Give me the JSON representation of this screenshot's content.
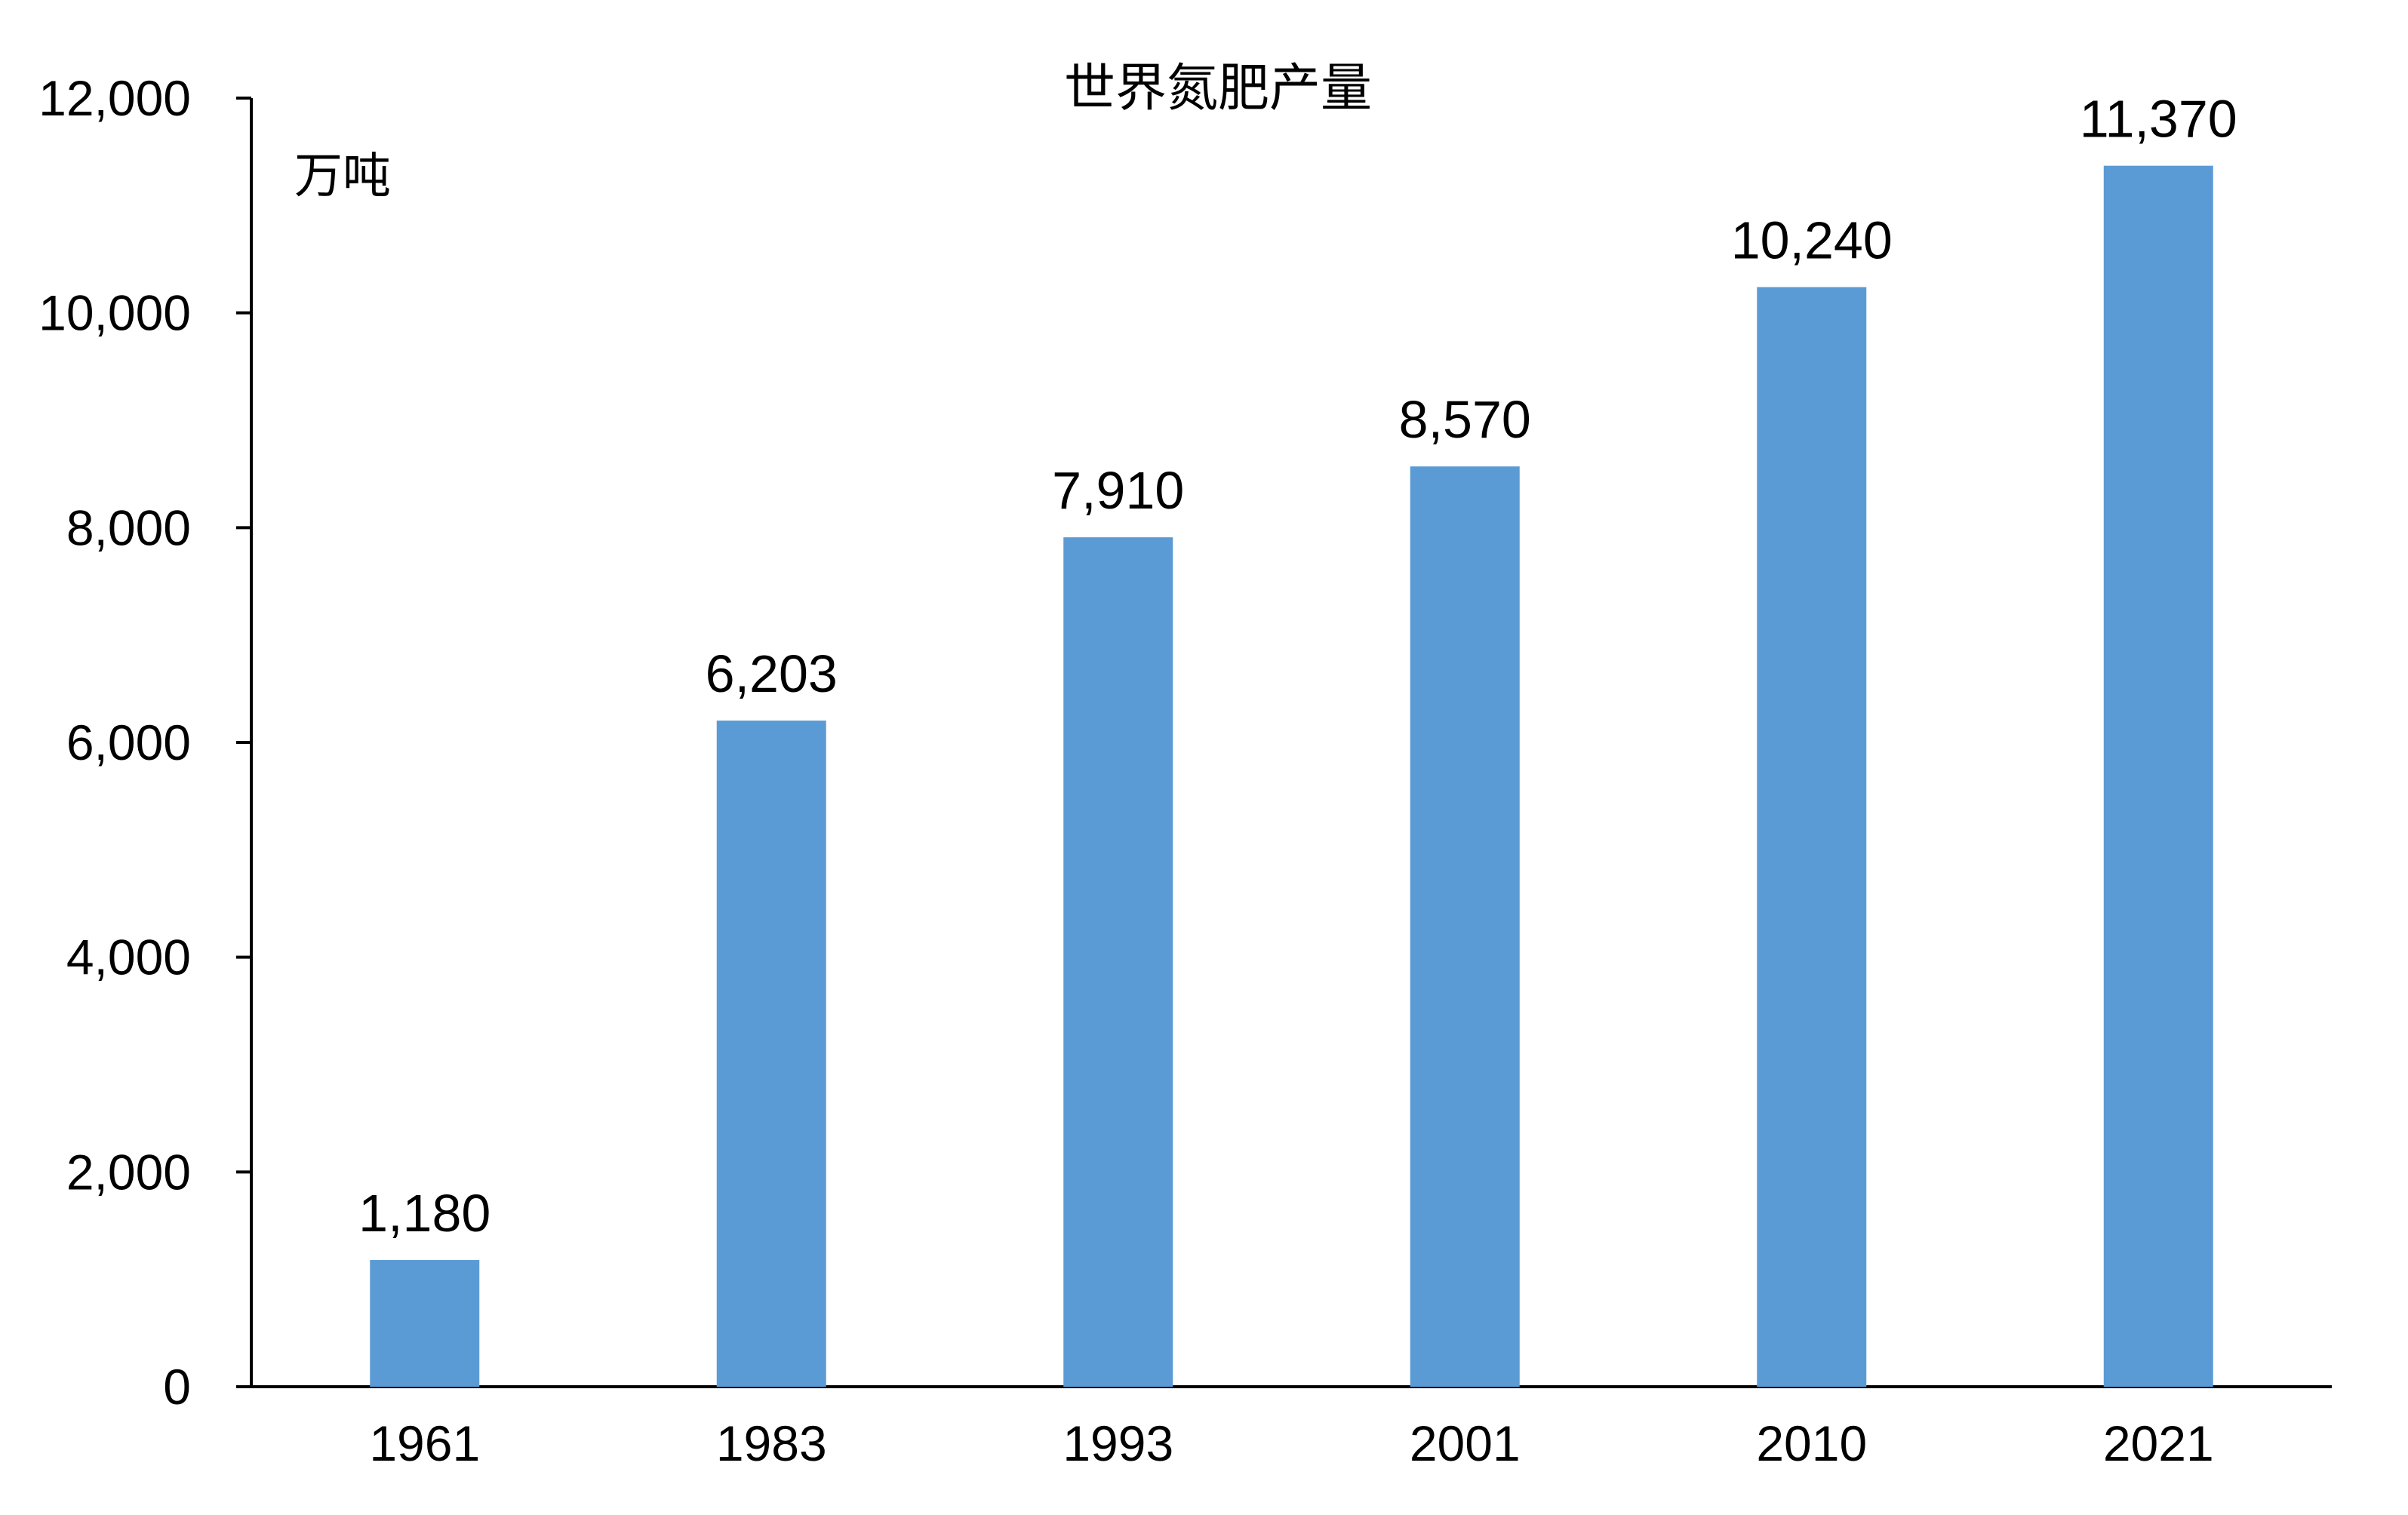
{
  "chart_data": {
    "type": "bar",
    "title": "世界氮肥产量",
    "unit_label": "万吨",
    "xlabel": "",
    "ylabel": "",
    "categories": [
      "1961",
      "1983",
      "1993",
      "2001",
      "2010",
      "2021"
    ],
    "series": [
      {
        "values": [
          1180,
          6203,
          7910,
          8570,
          10240,
          11370
        ],
        "color": "#5B9BD5"
      }
    ],
    "data_labels": [
      "1,180",
      "6,203",
      "7,910",
      "8,570",
      "10,240",
      "11,370"
    ],
    "ylim": [
      0,
      12000
    ],
    "yticks": [
      0,
      2000,
      4000,
      6000,
      8000,
      10000,
      12000
    ],
    "ytick_labels": [
      "0",
      "2,000",
      "4,000",
      "6,000",
      "8,000",
      "10,000",
      "12,000"
    ],
    "grid": false,
    "legend": "none"
  }
}
